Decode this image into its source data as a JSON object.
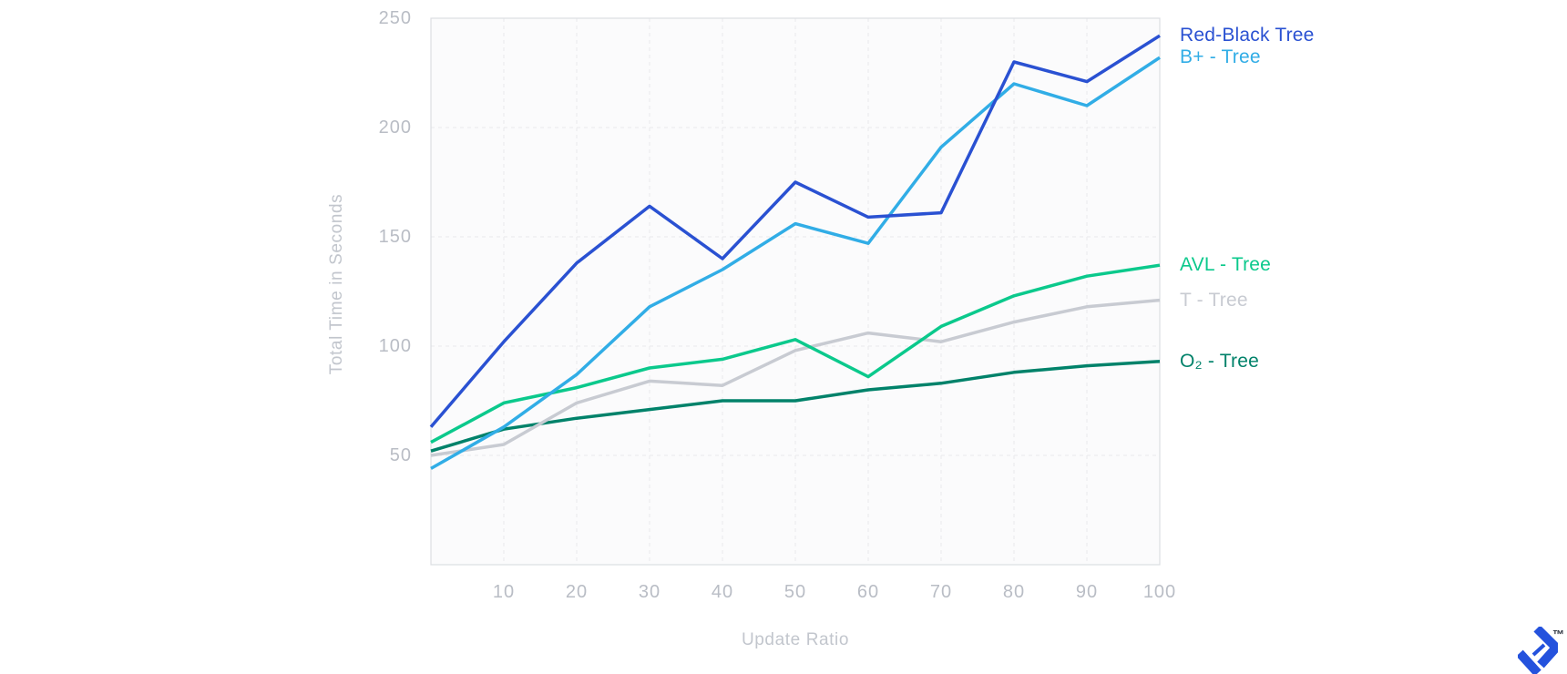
{
  "chart_data": {
    "type": "line",
    "title": "",
    "xlabel": "Update Ratio",
    "ylabel": "Total Time in Seconds",
    "xlim": [
      0,
      100
    ],
    "ylim": [
      0,
      250
    ],
    "x_ticks": [
      10,
      20,
      30,
      40,
      50,
      60,
      70,
      80,
      90,
      100
    ],
    "y_ticks": [
      50,
      100,
      150,
      200,
      250
    ],
    "grid": "dashed-horizontal-and-vertical",
    "legend_position": "right-of-plot-at-line-ends",
    "x": [
      0,
      10,
      20,
      30,
      40,
      50,
      60,
      70,
      80,
      90,
      100
    ],
    "series": [
      {
        "id": "red-black",
        "name": "Red-Black Tree",
        "color": "#2a51d2",
        "values": [
          63,
          102,
          138,
          164,
          140,
          175,
          159,
          161,
          230,
          221,
          242
        ]
      },
      {
        "id": "b-plus",
        "name": "B+ - Tree",
        "color": "#31ade6",
        "values": [
          44,
          63,
          87,
          118,
          135,
          156,
          147,
          191,
          220,
          210,
          232
        ]
      },
      {
        "id": "avl",
        "name": "AVL - Tree",
        "color": "#0bc98c",
        "values": [
          56,
          74,
          81,
          90,
          94,
          103,
          86,
          109,
          123,
          132,
          137
        ]
      },
      {
        "id": "t",
        "name": "T - Tree",
        "color": "#c8cbd2",
        "values": [
          50,
          55,
          74,
          84,
          82,
          98,
          106,
          102,
          111,
          118,
          121
        ]
      },
      {
        "id": "o2",
        "name": "O₂ - Tree",
        "color": "#00826a",
        "values": [
          52,
          62,
          67,
          71,
          75,
          75,
          80,
          83,
          88,
          91,
          93
        ]
      }
    ]
  },
  "branding": {
    "trademark": "™",
    "logo_color": "#2452dd"
  },
  "style": {
    "plot_bg": "#fbfbfc",
    "plot_border": "#dcdee2",
    "grid_color": "#e9eaec",
    "tick_text": "#b9bdc5",
    "axis_title_text": "#c2c6cd",
    "line_width": 3.5
  }
}
